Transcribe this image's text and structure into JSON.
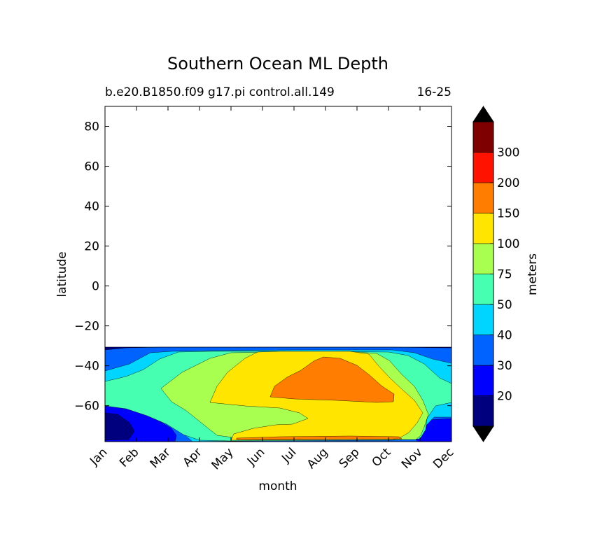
{
  "chart_data": {
    "type": "contourf",
    "title": "Southern Ocean ML Depth",
    "subtitle_left": "b.e20.B1850.f09 g17.pi control.all.149",
    "subtitle_right": "16-25",
    "xlabel": "month",
    "ylabel": "latitude",
    "x_categories": [
      "Jan",
      "Feb",
      "Mar",
      "Apr",
      "May",
      "Jun",
      "Jul",
      "Aug",
      "Sep",
      "Oct",
      "Nov",
      "Dec"
    ],
    "ylim": [
      -78,
      90
    ],
    "yticks": [
      -60,
      -40,
      -20,
      0,
      20,
      40,
      60,
      80
    ],
    "ytick_labels": [
      "−60",
      "−40",
      "−20",
      "0",
      "20",
      "40",
      "60",
      "80"
    ],
    "data_lat_max": -32,
    "colorbar": {
      "label": "meters",
      "levels": [
        20,
        30,
        40,
        50,
        75,
        100,
        150,
        200,
        300
      ],
      "tick_labels": [
        "20",
        "30",
        "40",
        "50",
        "75",
        "100",
        "150",
        "200",
        "300"
      ],
      "colors": [
        "#00007f",
        "#0000ff",
        "#0062ff",
        "#00d5ff",
        "#46ffb1",
        "#a8ff4f",
        "#ffe500",
        "#ff7d00",
        "#ff1300",
        "#7f0000"
      ],
      "extend": "both",
      "under_color": "#000000",
      "over_color": "#000000"
    },
    "regions": [
      {
        "level": "30-40",
        "color": "#0062ff",
        "months": [
          0,
          11
        ],
        "lat": [
          -78,
          -32
        ],
        "note": "background band"
      },
      {
        "level": "40-50",
        "color": "#00d5ff",
        "months": [
          0.5,
          10.5
        ],
        "lat": [
          -78,
          -34
        ]
      },
      {
        "level": "50-75",
        "color": "#46ffb1",
        "months": [
          0,
          11
        ],
        "lat": [
          -76,
          -35
        ]
      },
      {
        "level": "75-100",
        "color": "#a8ff4f",
        "months": [
          2,
          9.5
        ],
        "lat": [
          -77,
          -34
        ]
      },
      {
        "level": "100-150",
        "color": "#ffe500",
        "months": [
          3.5,
          9.5
        ],
        "lat": [
          -77,
          -33
        ]
      },
      {
        "level": "150-200",
        "color": "#ff7d00",
        "months": [
          5.5,
          8.5
        ],
        "lat": [
          -59,
          -37
        ]
      },
      {
        "level": "20-30",
        "color": "#0000ff",
        "months": [
          0,
          1.5
        ],
        "lat": [
          -78,
          -62
        ]
      },
      {
        "level": "<20",
        "color": "#00007f",
        "months": [
          0,
          0.9
        ],
        "lat": [
          -77,
          -66
        ]
      }
    ]
  }
}
